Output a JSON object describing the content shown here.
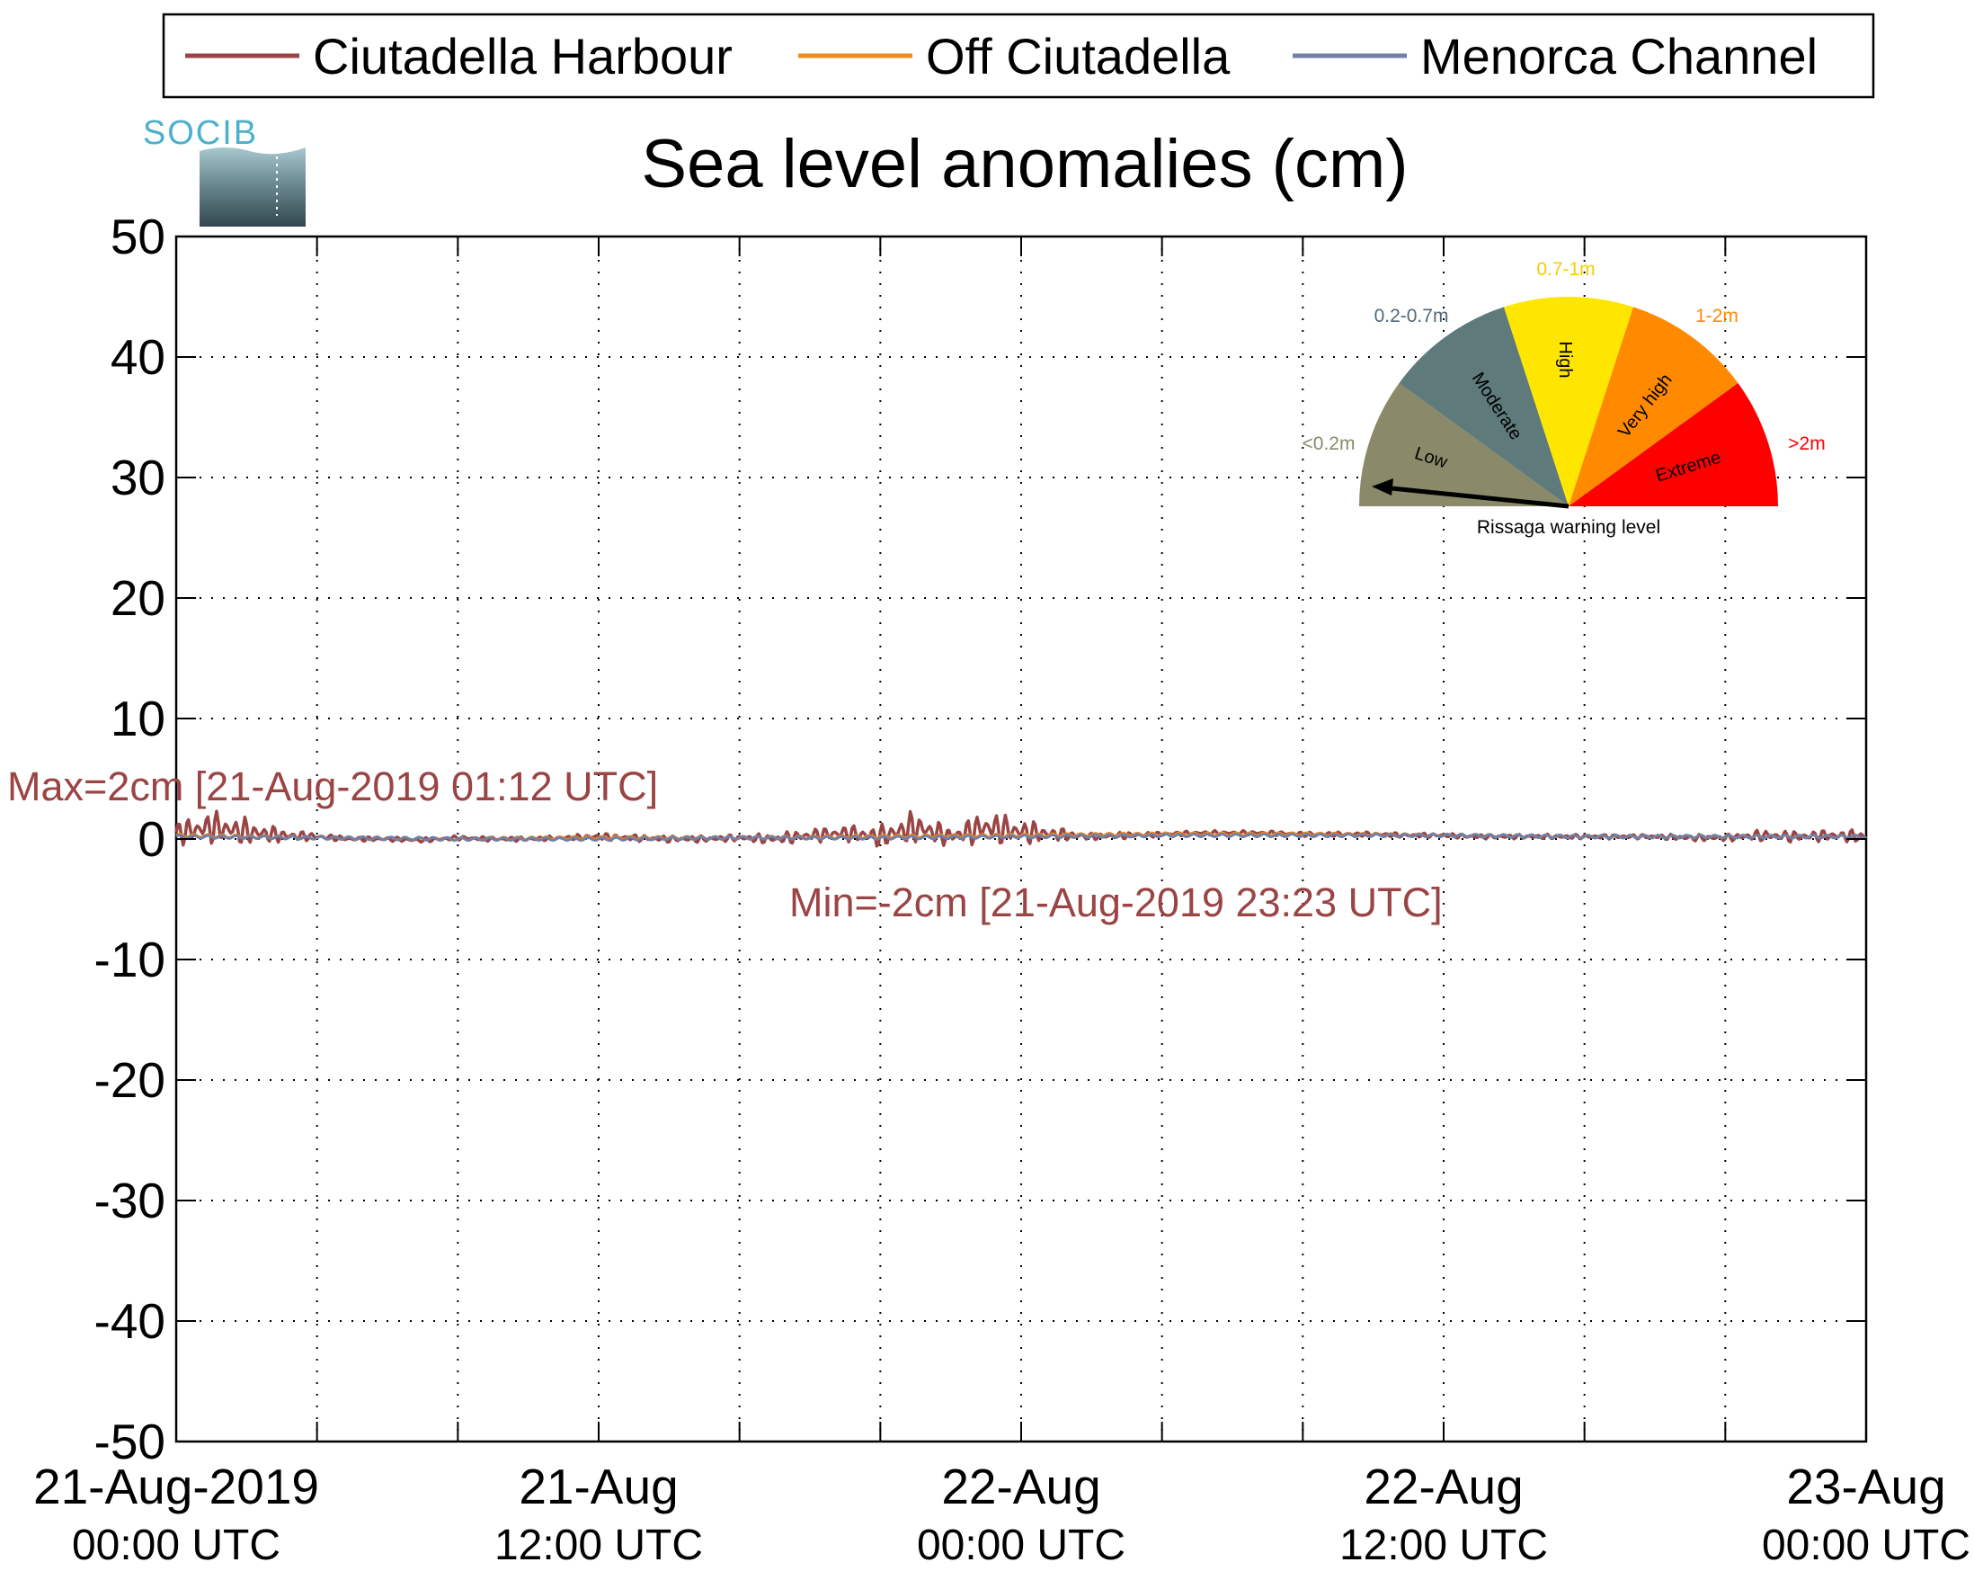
{
  "chart_data": {
    "type": "line",
    "title": "Sea level anomalies (cm)",
    "logo_text": "SOCIB",
    "ylim": [
      -50,
      50
    ],
    "yticks": [
      "50",
      "40",
      "30",
      "20",
      "10",
      "0",
      "-10",
      "-20",
      "-30",
      "-40",
      "-50"
    ],
    "x_range": [
      "2019-08-21T00:00",
      "2019-08-23T00:00"
    ],
    "x_minor_tick_hours": 4,
    "x_major_ticks": [
      {
        "date": "21-Aug-2019",
        "time": "00:00 UTC",
        "hours": 0
      },
      {
        "date": "21-Aug",
        "time": "12:00 UTC",
        "hours": 12
      },
      {
        "date": "22-Aug",
        "time": "00:00 UTC",
        "hours": 24
      },
      {
        "date": "22-Aug",
        "time": "12:00 UTC",
        "hours": 36
      },
      {
        "date": "23-Aug",
        "time": "00:00 UTC",
        "hours": 48
      }
    ],
    "grid": true,
    "legend_position": "top",
    "series": [
      {
        "name": "Ciutadella Harbour",
        "color": "#9b4444",
        "x_hours": [
          0,
          1,
          2,
          3,
          4,
          5,
          6,
          7,
          8,
          9,
          10,
          11,
          12,
          13,
          14,
          15,
          16,
          17,
          18,
          19,
          20,
          21,
          22,
          23,
          24,
          25,
          26,
          27,
          28,
          29,
          30,
          31,
          32,
          33,
          34,
          35,
          36,
          37,
          38,
          39,
          40,
          41,
          42,
          43,
          44,
          45,
          46,
          47,
          48
        ],
        "values": [
          0.5,
          1.0,
          0.6,
          0.3,
          0.2,
          0.0,
          0.0,
          -0.1,
          0.1,
          0.0,
          0.0,
          0.1,
          0.2,
          0.1,
          0.0,
          0.0,
          0.1,
          0.0,
          0.3,
          0.5,
          0.2,
          1.0,
          0.2,
          1.0,
          0.6,
          0.4,
          0.2,
          0.3,
          0.4,
          0.5,
          0.5,
          0.5,
          0.4,
          0.4,
          0.4,
          0.3,
          0.3,
          0.2,
          0.2,
          0.2,
          0.2,
          0.2,
          0.2,
          0.1,
          0.1,
          0.3,
          0.2,
          0.3,
          0.2
        ],
        "envelope": [
          1.0,
          1.5,
          1.2,
          0.6,
          0.3,
          0.2,
          0.2,
          0.2,
          0.2,
          0.2,
          0.2,
          0.2,
          0.3,
          0.3,
          0.3,
          0.3,
          0.3,
          0.5,
          0.6,
          0.7,
          1.0,
          1.5,
          0.8,
          1.5,
          1.2,
          0.6,
          0.3,
          0.3,
          0.2,
          0.2,
          0.2,
          0.2,
          0.2,
          0.2,
          0.2,
          0.2,
          0.2,
          0.2,
          0.2,
          0.2,
          0.2,
          0.2,
          0.2,
          0.3,
          0.3,
          0.5,
          0.5,
          0.5,
          0.6
        ]
      },
      {
        "name": "Off Ciutadella",
        "color": "#f08a1e",
        "x_hours": [
          0,
          4,
          8,
          12,
          16,
          20,
          24,
          28,
          32,
          36,
          40,
          44,
          48
        ],
        "values": [
          0.3,
          0.1,
          0.0,
          0.1,
          0.1,
          0.2,
          0.3,
          0.4,
          0.4,
          0.3,
          0.2,
          0.2,
          0.2
        ]
      },
      {
        "name": "Menorca Channel",
        "color": "#7080a8",
        "x_hours": [
          0,
          4,
          8,
          12,
          16,
          20,
          24,
          28,
          32,
          36,
          40,
          44,
          48
        ],
        "values": [
          0.2,
          0.1,
          0.0,
          0.0,
          0.1,
          0.1,
          0.2,
          0.3,
          0.3,
          0.3,
          0.2,
          0.2,
          0.2
        ]
      }
    ],
    "annotations": {
      "max": "Max=2cm [21-Aug-2019 01:12 UTC]",
      "min": "Min=-2cm [21-Aug-2019 23:23 UTC]",
      "color": "#9b4444"
    }
  },
  "gauge": {
    "title": "Rissaga warning level",
    "needle_level": "Low",
    "segments": [
      {
        "name": "Low",
        "range": "<0.2m",
        "color": "#8a8a6a",
        "range_color": "#8a8a6a"
      },
      {
        "name": "Moderate",
        "range": "0.2-0.7m",
        "color": "#5e7a7a",
        "range_color": "#4e6a78"
      },
      {
        "name": "High",
        "range": "0.7-1m",
        "color": "#ffe600",
        "range_color": "#f2d000"
      },
      {
        "name": "Very high",
        "range": "1-2m",
        "color": "#ff8a00",
        "range_color": "#ff8a00"
      },
      {
        "name": "Extreme",
        "range": ">2m",
        "color": "#ff0000",
        "range_color": "#ff0000"
      }
    ]
  }
}
